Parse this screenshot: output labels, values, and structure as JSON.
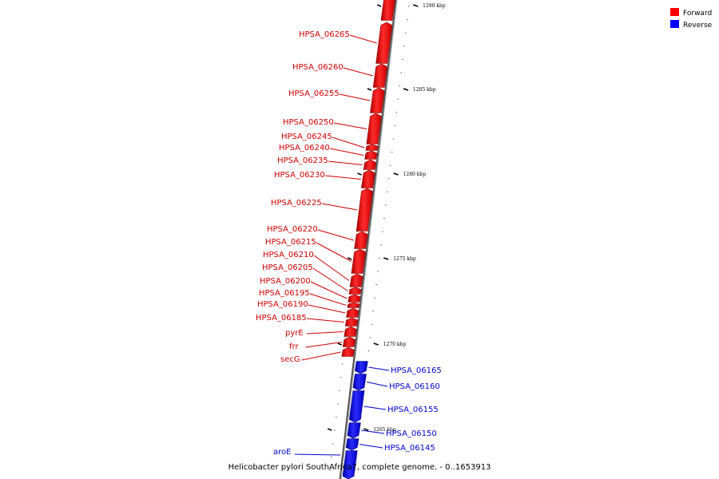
{
  "legend": [
    {
      "label": "Forward",
      "color": "#ff0000"
    },
    {
      "label": "Reverse",
      "color": "#0000ff"
    }
  ],
  "footer": "Helicobacter pylori SouthAfrica7, complete genome. - 0..1653913",
  "ticks": [
    {
      "label": "1290 kbp"
    },
    {
      "label": "1285 kbp"
    },
    {
      "label": "1280 kbp"
    },
    {
      "label": "1275 kbp"
    },
    {
      "label": "1270 kbp"
    },
    {
      "label": "1265 kbp"
    }
  ],
  "genes": [
    {
      "name": "HPSA_06265",
      "strand": "forward"
    },
    {
      "name": "HPSA_06260",
      "strand": "forward"
    },
    {
      "name": "HPSA_06255",
      "strand": "forward"
    },
    {
      "name": "HPSA_06250",
      "strand": "forward"
    },
    {
      "name": "HPSA_06245",
      "strand": "forward"
    },
    {
      "name": "HPSA_06240",
      "strand": "forward"
    },
    {
      "name": "HPSA_06235",
      "strand": "forward"
    },
    {
      "name": "HPSA_06230",
      "strand": "forward"
    },
    {
      "name": "HPSA_06225",
      "strand": "forward"
    },
    {
      "name": "HPSA_06220",
      "strand": "forward"
    },
    {
      "name": "HPSA_06215",
      "strand": "forward"
    },
    {
      "name": "HPSA_06210",
      "strand": "forward"
    },
    {
      "name": "HPSA_06205",
      "strand": "forward"
    },
    {
      "name": "HPSA_06200",
      "strand": "forward"
    },
    {
      "name": "HPSA_06195",
      "strand": "forward"
    },
    {
      "name": "HPSA_06190",
      "strand": "forward"
    },
    {
      "name": "HPSA_06185",
      "strand": "forward"
    },
    {
      "name": "pyrE",
      "strand": "forward"
    },
    {
      "name": "frr",
      "strand": "forward"
    },
    {
      "name": "secG",
      "strand": "forward"
    },
    {
      "name": "HPSA_06165",
      "strand": "reverse"
    },
    {
      "name": "HPSA_06160",
      "strand": "reverse"
    },
    {
      "name": "HPSA_06155",
      "strand": "reverse"
    },
    {
      "name": "HPSA_06150",
      "strand": "reverse"
    },
    {
      "name": "HPSA_06145",
      "strand": "reverse"
    },
    {
      "name": "aroE",
      "strand": "reverse"
    }
  ]
}
